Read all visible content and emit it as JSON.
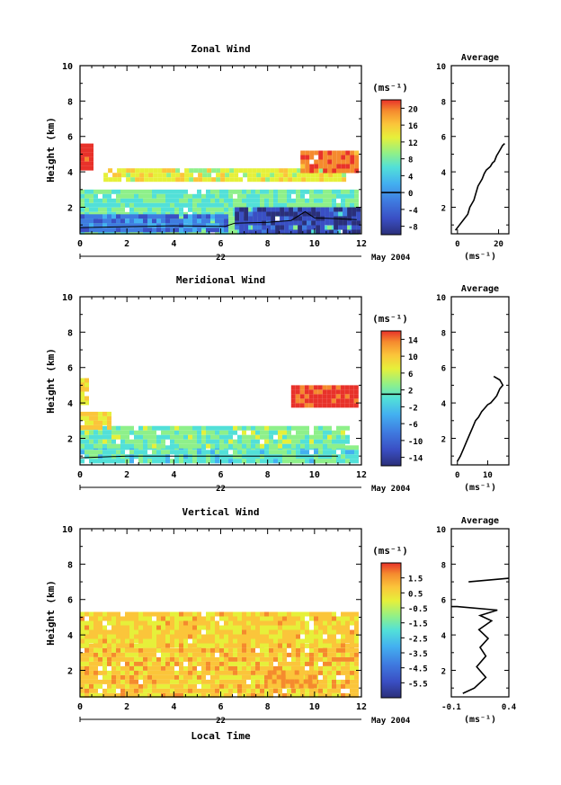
{
  "figure": {
    "date_label": "May 2004",
    "day_label": "22",
    "xlabel": "Local Time",
    "unit_label": "(ms⁻¹)"
  },
  "chart_data": [
    {
      "type": "heatmap",
      "title": "Zonal Wind",
      "xlabel": "",
      "ylabel": "Height (km)",
      "xlim": [
        0,
        12
      ],
      "ylim": [
        0.5,
        10
      ],
      "x_ticks": [
        0,
        2,
        4,
        6,
        8,
        10,
        12
      ],
      "y_ticks": [
        2,
        4,
        6,
        8,
        10
      ],
      "colorbar": {
        "unit": "(ms⁻¹)",
        "ticks": [
          20,
          16,
          12,
          8,
          4,
          0,
          -4,
          -8
        ],
        "range": [
          -10,
          22
        ],
        "zero_line": 0
      },
      "fields": [
        {
          "x": [
            0.0,
            11.8
          ],
          "y": [
            0.7,
            3.0
          ],
          "value": 6,
          "note": "band"
        },
        {
          "x": [
            0.0,
            6.3
          ],
          "y": [
            0.7,
            1.6
          ],
          "value": -2
        },
        {
          "x": [
            6.6,
            11.8
          ],
          "y": [
            0.7,
            2.0
          ],
          "value": -6
        },
        {
          "x": [
            1.0,
            11.2
          ],
          "y": [
            3.6,
            4.2
          ],
          "value": 11
        },
        {
          "x": [
            9.4,
            11.8
          ],
          "y": [
            4.0,
            5.2
          ],
          "value": 18
        },
        {
          "x": [
            0.0,
            0.4
          ],
          "y": [
            4.2,
            5.6
          ],
          "value": 21
        }
      ],
      "boundary_layer_line": {
        "x": [
          0.0,
          2.0,
          4.0,
          6.2,
          6.6,
          8.0,
          9.0,
          9.6,
          10.0,
          11.0,
          11.8
        ],
        "y": [
          0.85,
          0.9,
          0.95,
          0.92,
          1.1,
          1.15,
          1.25,
          1.75,
          1.4,
          1.35,
          1.3
        ]
      },
      "profile": {
        "title": "Average",
        "xlabel": "(ms⁻¹)",
        "xlim": [
          -3,
          25
        ],
        "x_ticks": [
          0,
          20
        ],
        "y_ticks": [
          2,
          4,
          6,
          8,
          10
        ],
        "ylim": [
          0.5,
          10
        ],
        "x": [
          -1,
          1,
          3,
          5,
          6,
          8,
          9,
          10,
          12,
          13,
          14,
          16,
          17,
          18,
          19,
          20,
          21,
          22,
          23
        ],
        "y": [
          0.7,
          1.0,
          1.3,
          1.6,
          2.0,
          2.4,
          2.8,
          3.2,
          3.6,
          3.9,
          4.1,
          4.3,
          4.5,
          4.6,
          4.9,
          5.1,
          5.3,
          5.5,
          5.6
        ]
      }
    },
    {
      "type": "heatmap",
      "title": "Meridional Wind",
      "xlabel": "",
      "ylabel": "Height (km)",
      "xlim": [
        0,
        12
      ],
      "ylim": [
        0.5,
        10
      ],
      "x_ticks": [
        0,
        2,
        4,
        6,
        8,
        10,
        12
      ],
      "y_ticks": [
        2,
        4,
        6,
        8,
        10
      ],
      "colorbar": {
        "unit": "(ms⁻¹)",
        "ticks": [
          14,
          10,
          6,
          2,
          -2,
          -6,
          -10,
          -14
        ],
        "range": [
          -16,
          16
        ],
        "zero_line": 1
      },
      "fields": [
        {
          "x": [
            0.0,
            11.8
          ],
          "y": [
            0.7,
            1.6
          ],
          "value": -1
        },
        {
          "x": [
            0.0,
            11.5
          ],
          "y": [
            1.6,
            2.7
          ],
          "value": 1
        },
        {
          "x": [
            0.0,
            1.2
          ],
          "y": [
            2.5,
            3.5
          ],
          "value": 6
        },
        {
          "x": [
            9.0,
            11.8
          ],
          "y": [
            3.8,
            5.0
          ],
          "value": 14
        },
        {
          "x": [
            0.0,
            0.3
          ],
          "y": [
            4.0,
            5.4
          ],
          "value": 6
        }
      ],
      "boundary_layer_line": {
        "x": [
          0.0,
          2.0,
          4.0,
          6.0,
          8.0,
          10.0,
          11.0
        ],
        "y": [
          0.9,
          1.0,
          1.0,
          1.0,
          1.0,
          1.0,
          1.0
        ]
      },
      "profile": {
        "title": "Average",
        "xlabel": "(ms⁻¹)",
        "xlim": [
          -2,
          17
        ],
        "x_ticks": [
          0,
          10
        ],
        "y_ticks": [
          2,
          4,
          6,
          8,
          10
        ],
        "ylim": [
          0.5,
          10
        ],
        "x": [
          0,
          1,
          2,
          3,
          4,
          5,
          6,
          7,
          8,
          9,
          10,
          11,
          12,
          13,
          14,
          15,
          14,
          12
        ],
        "y": [
          0.7,
          1.0,
          1.4,
          1.8,
          2.2,
          2.6,
          3.0,
          3.2,
          3.5,
          3.7,
          3.9,
          4.0,
          4.2,
          4.4,
          4.8,
          5.0,
          5.3,
          5.5
        ]
      }
    },
    {
      "type": "heatmap",
      "title": "Vertical Wind",
      "xlabel": "Local Time",
      "ylabel": "Height (km)",
      "xlim": [
        0,
        12
      ],
      "ylim": [
        0.5,
        10
      ],
      "x_ticks": [
        0,
        2,
        4,
        6,
        8,
        10,
        12
      ],
      "y_ticks": [
        2,
        4,
        6,
        8,
        10
      ],
      "colorbar": {
        "unit": "(ms⁻¹)",
        "ticks": [
          1.5,
          0.5,
          -0.5,
          -1.5,
          -2.5,
          -3.5,
          -4.5,
          -5.5
        ],
        "range": [
          -6.5,
          2.5
        ],
        "zero_line": null
      },
      "fields": [
        {
          "x": [
            0.0,
            11.8
          ],
          "y": [
            0.7,
            3.5
          ],
          "value": 0.2
        },
        {
          "x": [
            0.0,
            11.8
          ],
          "y": [
            3.5,
            5.3
          ],
          "value": 0.0
        },
        {
          "x": [
            8.0,
            10.0
          ],
          "y": [
            1.0,
            2.0
          ],
          "value": 0.8
        }
      ],
      "profile": {
        "title": "Average",
        "xlabel": "(ms⁻¹)",
        "xlim": [
          -0.1,
          0.4
        ],
        "x_ticks": [
          -0.1,
          0.4
        ],
        "x_tick_labels": [
          "-0.1",
          "0.4"
        ],
        "y_ticks": [
          2,
          4,
          6,
          8,
          10
        ],
        "ylim": [
          0.5,
          10
        ],
        "x": [
          0.0,
          0.1,
          0.2,
          0.12,
          0.2,
          0.15,
          0.22,
          0.14,
          0.25,
          0.15,
          0.3,
          -0.05,
          -0.1
        ],
        "y": [
          0.7,
          1.0,
          1.6,
          2.2,
          2.8,
          3.3,
          3.8,
          4.3,
          4.8,
          5.1,
          5.4,
          5.6,
          5.6
        ]
      },
      "profile_segments_upper": {
        "x": [
          0.05,
          0.4
        ],
        "y": [
          7.0,
          7.2
        ]
      }
    }
  ]
}
